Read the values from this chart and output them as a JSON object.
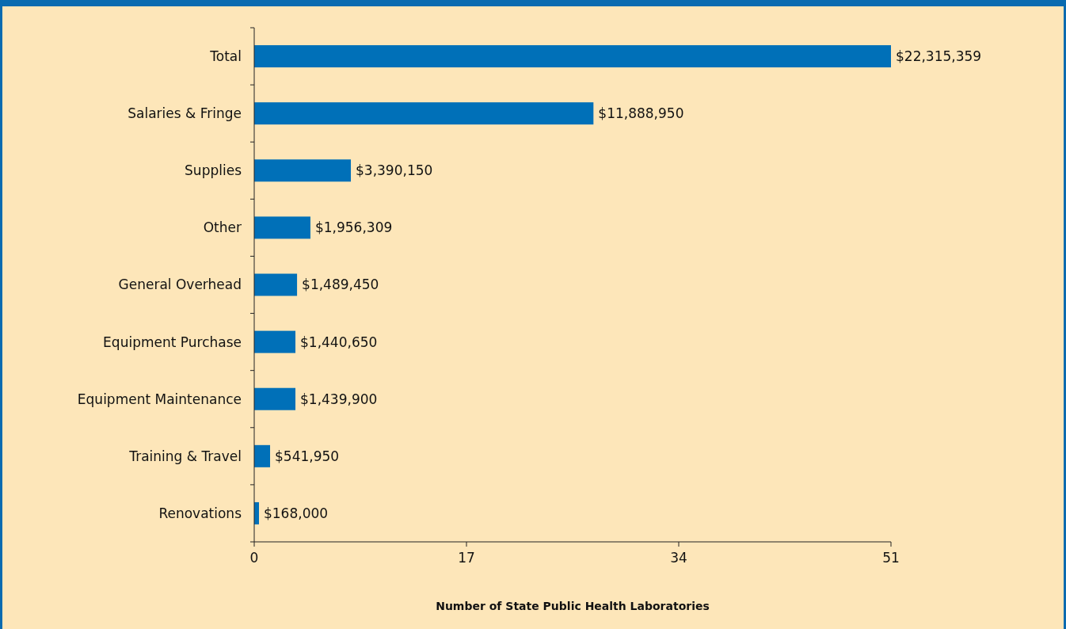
{
  "chart_data": {
    "type": "bar",
    "orientation": "horizontal",
    "xlabel": "Number of State Public Health Laboratories",
    "categories": [
      "Total",
      "Salaries & Fringe",
      "Supplies",
      "Other",
      "General Overhead",
      "Equipment Purchase",
      "Equipment Maintenance",
      "Training & Travel",
      "Renovations"
    ],
    "values": [
      51,
      27.17,
      7.74,
      4.5,
      3.43,
      3.3,
      3.3,
      1.27,
      0.38
    ],
    "annotations": [
      {
        "text": "$22,315,359",
        "x": 51,
        "y": "Total"
      },
      {
        "text": "$11,888,950",
        "x": 27.17,
        "y": "Salaries & Fringe"
      },
      {
        "text": "$3,390,150",
        "x": 7.74,
        "y": "Supplies"
      },
      {
        "text": "$1,956,309",
        "x": 4.5,
        "y": "Other"
      },
      {
        "text": "$1,489,450",
        "x": 3.43,
        "y": "General Overhead"
      },
      {
        "text": "$1,440,650",
        "x": 3.3,
        "y": "Equipment Purchase"
      },
      {
        "text": "$1,439,900",
        "x": 3.3,
        "y": "Equipment Maintenance"
      },
      {
        "text": "$541,950",
        "x": 1.27,
        "y": "Training & Travel"
      },
      {
        "text": "$168,000",
        "x": 0.38,
        "y": "Renovations"
      }
    ],
    "color": "#0070b8",
    "xlim": [
      0,
      51
    ],
    "xticks": [
      0,
      17,
      34,
      51
    ],
    "grid": false
  }
}
